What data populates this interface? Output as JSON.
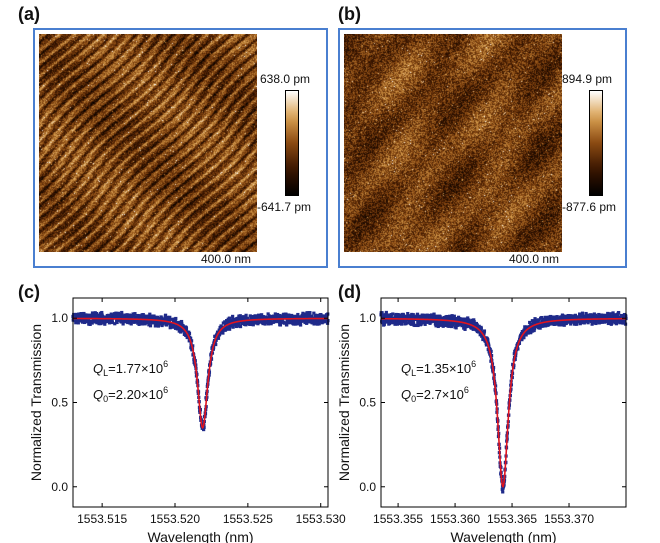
{
  "afm": [
    {
      "label": "(a)",
      "cbar_max": "638.0 pm",
      "cbar_min": "-641.7 pm",
      "scale": "400.0 nm",
      "texture": "diagonal"
    },
    {
      "label": "(b)",
      "cbar_max": "894.9 pm",
      "cbar_min": "-877.6 pm",
      "scale": "400.0 nm",
      "texture": "granular"
    }
  ],
  "colors": {
    "frame": "#4a7fd0",
    "data": "#1f2a8a",
    "fit": "#e0141e",
    "colormap": [
      "#000000",
      "#3a1500",
      "#8a4a12",
      "#d9a050",
      "#ffffff"
    ]
  },
  "chart_data": [
    {
      "type": "scatter",
      "label": "(c)",
      "xlabel": "Wavelength (nm)",
      "ylabel": "Normalized Transmission",
      "xlim": [
        1553.513,
        1553.5305
      ],
      "ylim": [
        -0.12,
        1.12
      ],
      "xticks": [
        "1553.515",
        "1553.520",
        "1553.525",
        "1553.530"
      ],
      "xtick_values": [
        1553.515,
        1553.52,
        1553.525,
        1553.53
      ],
      "yticks": [
        "0.0",
        "0.5",
        "1.0"
      ],
      "ytick_values": [
        0.0,
        0.5,
        1.0
      ],
      "dip_center": 1553.5219,
      "dip_halfwidth": 0.00043,
      "dip_min": 0.35,
      "noise": 0.025,
      "annotations": {
        "ql_sym": "Q",
        "ql_sub": "L",
        "ql_val": "=1.77×10",
        "ql_exp": "6",
        "q0_sym": "Q",
        "q0_sub": "0",
        "q0_val": "=2.20×10",
        "q0_exp": "6"
      }
    },
    {
      "type": "scatter",
      "label": "(d)",
      "xlabel": "Wavelength (nm)",
      "ylabel": "Normalized Transmission",
      "xlim": [
        1553.3535,
        1553.375
      ],
      "ylim": [
        -0.12,
        1.12
      ],
      "xticks": [
        "1553.355",
        "1553.360",
        "1553.365",
        "1553.370"
      ],
      "xtick_values": [
        1553.355,
        1553.36,
        1553.365,
        1553.37
      ],
      "yticks": [
        "0.0",
        "0.5",
        "1.0"
      ],
      "ytick_values": [
        0.0,
        0.5,
        1.0
      ],
      "dip_center": 1553.3642,
      "dip_halfwidth": 0.00057,
      "dip_min": 0.0,
      "noise": 0.025,
      "annotations": {
        "ql_sym": "Q",
        "ql_sub": "L",
        "ql_val": "=1.35×10",
        "ql_exp": "6",
        "q0_sym": "Q",
        "q0_sub": "0",
        "q0_val": "=2.7×10",
        "q0_exp": "6"
      }
    }
  ]
}
